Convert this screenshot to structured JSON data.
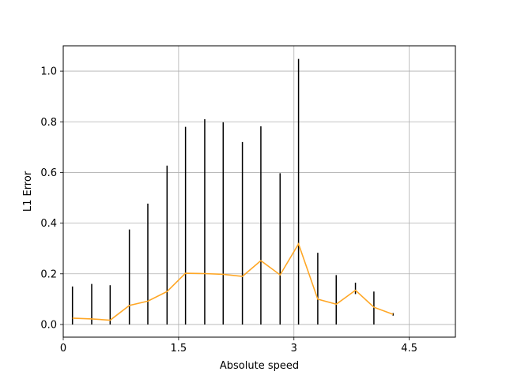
{
  "chart_data": {
    "type": "line",
    "xlabel": "Absolute speed",
    "ylabel": "L1 Error",
    "xlim": [
      0,
      5.1
    ],
    "ylim": [
      -0.05,
      1.1
    ],
    "xticks": [
      0,
      1.5,
      3,
      4.5
    ],
    "xtick_labels": [
      "0",
      "1.5",
      "3",
      "4.5"
    ],
    "yticks": [
      0.0,
      0.2,
      0.4,
      0.6,
      0.8,
      1.0
    ],
    "ytick_labels": [
      "0.0",
      "0.2",
      "0.4",
      "0.6",
      "0.8",
      "1.0"
    ],
    "grid": true,
    "line_color": "#ffa726",
    "errorbar_color": "#000000",
    "series": [
      {
        "x": [
          0.12,
          0.37,
          0.61,
          0.86,
          1.1,
          1.35,
          1.59,
          1.84,
          2.08,
          2.33,
          2.57,
          2.82,
          3.06,
          3.31,
          3.55,
          3.8,
          4.04,
          4.29
        ],
        "y": [
          0.025,
          0.022,
          0.017,
          0.075,
          0.092,
          0.13,
          0.202,
          0.201,
          0.198,
          0.19,
          0.252,
          0.196,
          0.318,
          0.1,
          0.08,
          0.135,
          0.068,
          0.04
        ],
        "errorbars": [
          [
            0.0,
            0.15
          ],
          [
            0.0,
            0.16
          ],
          [
            0.0,
            0.155
          ],
          [
            0.0,
            0.375
          ],
          [
            0.0,
            0.477
          ],
          [
            0.0,
            0.627
          ],
          [
            0.0,
            0.78
          ],
          [
            0.0,
            0.81
          ],
          [
            0.0,
            0.798
          ],
          [
            0.0,
            0.72
          ],
          [
            0.0,
            0.782
          ],
          [
            0.0,
            0.597
          ],
          [
            0.0,
            1.048
          ],
          [
            0.0,
            0.283
          ],
          [
            0.0,
            0.195
          ],
          [
            0.12,
            0.165
          ],
          [
            0.0,
            0.13
          ],
          [
            0.035,
            0.045
          ]
        ]
      }
    ]
  }
}
